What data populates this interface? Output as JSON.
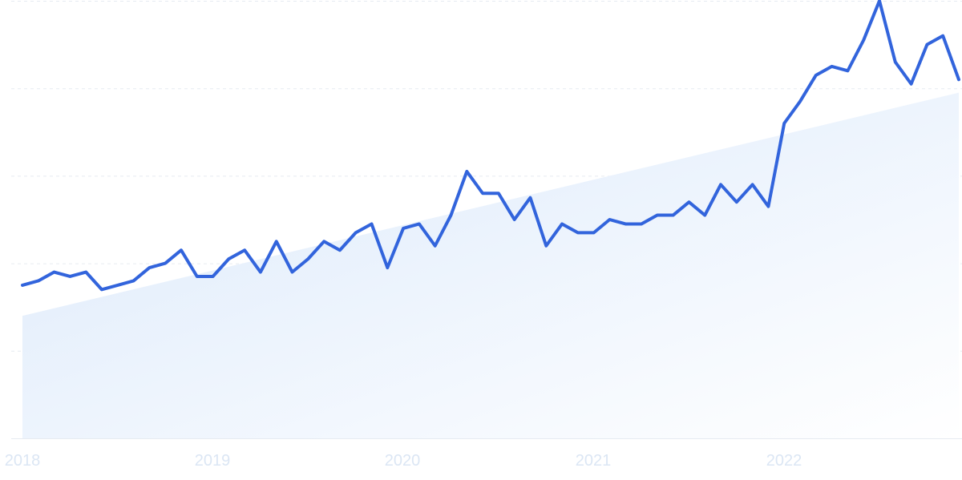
{
  "chart_data": {
    "type": "line",
    "title": "",
    "xlabel": "",
    "ylabel": "",
    "x_ticks": [
      "2018",
      "2019",
      "2020",
      "2021",
      "2022"
    ],
    "x_range": [
      0,
      59
    ],
    "ylim": [
      0,
      100
    ],
    "grid": true,
    "legend": "none",
    "colors": {
      "line": "#3264dc",
      "trend_fill_top": "#dbe9fb",
      "trend_fill_bottom": "#ffffff",
      "grid": "#e6ebf1",
      "tick_label": "#dbe6f4"
    },
    "trend": {
      "start": 28,
      "end": 79
    },
    "series": [
      {
        "name": "",
        "x": [
          0,
          1,
          2,
          3,
          4,
          5,
          6,
          7,
          8,
          9,
          10,
          11,
          12,
          13,
          14,
          15,
          16,
          17,
          18,
          19,
          20,
          21,
          22,
          23,
          24,
          25,
          26,
          27,
          28,
          29,
          30,
          31,
          32,
          33,
          34,
          35,
          36,
          37,
          38,
          39,
          40,
          41,
          42,
          43,
          44,
          45,
          46,
          47,
          48,
          49,
          50,
          51,
          52,
          53,
          54,
          55,
          56,
          57,
          58,
          59
        ],
        "values": [
          35,
          36,
          38,
          37,
          38,
          34,
          35,
          36,
          39,
          40,
          43,
          37,
          37,
          41,
          43,
          38,
          45,
          38,
          41,
          45,
          43,
          47,
          49,
          39,
          48,
          49,
          44,
          51,
          61,
          56,
          56,
          50,
          55,
          44,
          49,
          47,
          47,
          50,
          49,
          49,
          51,
          51,
          54,
          51,
          58,
          54,
          58,
          53,
          72,
          77,
          83,
          85,
          84,
          91,
          100,
          86,
          81,
          90,
          92,
          82
        ]
      }
    ]
  }
}
